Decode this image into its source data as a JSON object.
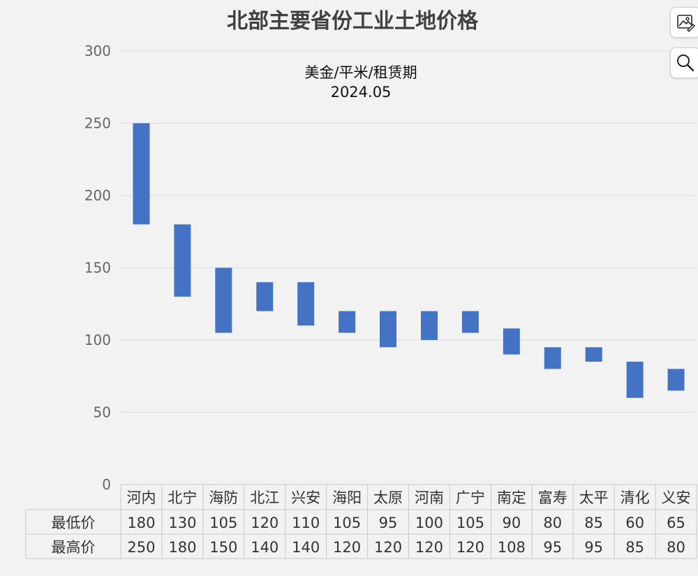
{
  "chart_data": {
    "type": "bar",
    "subtype": "floating-range",
    "title": "北部主要省份工业土地价格",
    "subtitle_lines": [
      "美金/平米/租赁期",
      "2024.05"
    ],
    "ylim": [
      0,
      300
    ],
    "yticks": [
      "0",
      "50",
      "100",
      "150",
      "200",
      "250",
      "300"
    ],
    "grid": true,
    "categories": [
      "河内",
      "北宁",
      "海防",
      "北江",
      "兴安",
      "海阳",
      "太原",
      "河南",
      "广宁",
      "南定",
      "富寿",
      "太平",
      "清化",
      "义安"
    ],
    "series": [
      {
        "name": "最低价",
        "values": [
          180,
          130,
          105,
          120,
          110,
          105,
          95,
          100,
          105,
          90,
          80,
          85,
          60,
          65
        ]
      },
      {
        "name": "最高价",
        "values": [
          250,
          180,
          150,
          140,
          140,
          120,
          120,
          120,
          120,
          108,
          95,
          95,
          85,
          80
        ]
      }
    ],
    "bar_color": "#4472c4"
  },
  "toolbar": {
    "edit_icon": "image-edit-icon",
    "zoom_icon": "magnifier-icon"
  }
}
